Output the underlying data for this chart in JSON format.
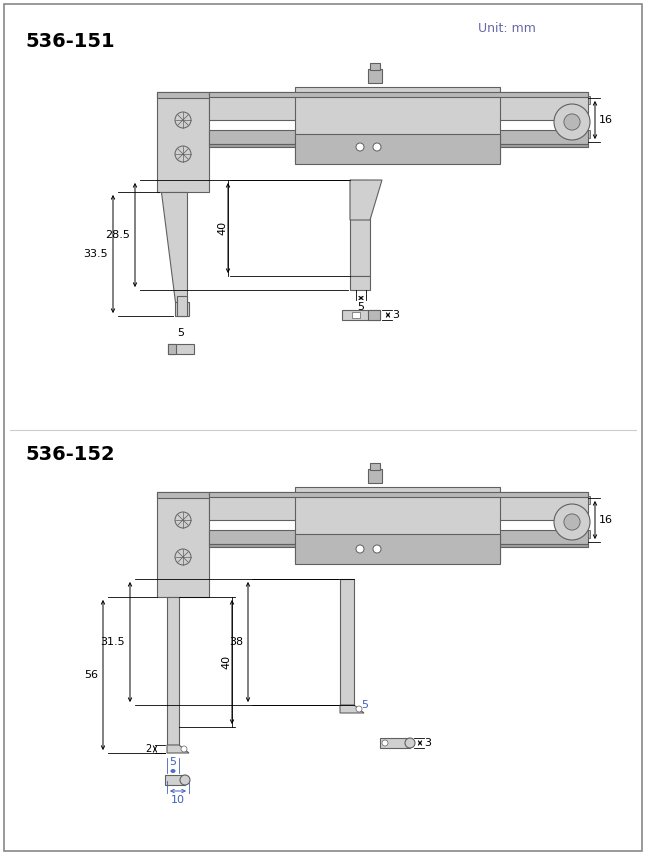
{
  "title_151": "536-151",
  "title_152": "536-152",
  "unit_text": "Unit: mm",
  "bg_color": "#ffffff",
  "gray_light": "#d0d0d0",
  "gray_mid": "#b8b8b8",
  "gray_dark": "#a0a0a0",
  "dim_color": "#000000",
  "blue_dim": "#4060c0",
  "dim_151": {
    "jaw_len_outer": "33.5",
    "jaw_len_inner": "28.5",
    "jaw_depth": "40",
    "tip_width": "5",
    "tip_gap": "5",
    "tip_height": "3",
    "beam_height": "16"
  },
  "dim_152": {
    "jaw_len": "56",
    "jaw_inner": "31.5",
    "jaw_offset": "2",
    "jaw_depth": "40",
    "jaw_depth2": "38",
    "tip_left": "5",
    "tip_right": "5",
    "tip_total": "10",
    "tip_height": "3",
    "beam_height": "16"
  }
}
